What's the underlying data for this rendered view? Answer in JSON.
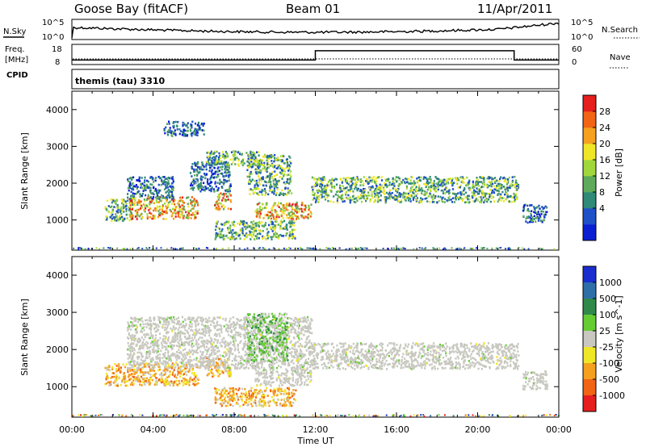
{
  "header": {
    "station": "Goose Bay (fitACF)",
    "beam": "Beam 01",
    "date": "11/Apr/2011"
  },
  "noise_panel": {
    "left_label": "N.Sky",
    "right_label": "N.Search",
    "left_ticks": [
      "10^5",
      "10^0"
    ],
    "right_ticks": [
      "10^5",
      "10^0"
    ]
  },
  "freq_panel": {
    "left_label_1": "Freq.",
    "left_label_2": "[MHz]",
    "left_ticks": [
      "18",
      "8"
    ],
    "right_label": "Nave",
    "right_ticks": [
      "60",
      "0"
    ],
    "cpid_label": "CPID"
  },
  "cpid_panel": {
    "text": "themis (tau) 3310"
  },
  "axes": {
    "ylabel": "Slant Range [km]",
    "yticks": [
      "1000",
      "2000",
      "3000",
      "4000"
    ],
    "xticks": [
      "00:00",
      "04:00",
      "08:00",
      "12:00",
      "16:00",
      "20:00",
      "00:00"
    ],
    "xlabel": "Time UT"
  },
  "power_colorbar": {
    "label": "Power [dB]",
    "ticks": [
      "4",
      "8",
      "12",
      "16",
      "20",
      "24",
      "28"
    ],
    "colors": [
      "#0a1ed2",
      "#1e50c8",
      "#2f8a78",
      "#5faa5a",
      "#a0d83c",
      "#f0e628",
      "#f5a01e",
      "#f06414",
      "#e61e1e"
    ]
  },
  "velocity_colorbar": {
    "label": "Velocity [m s^-1]",
    "ticks": [
      "1000",
      "500",
      "100",
      "25",
      "-25",
      "-100",
      "-500",
      "-1000"
    ],
    "colors": [
      "#1a2ecf",
      "#2f6fa8",
      "#2f8a4a",
      "#66cc33",
      "#c8c8c0",
      "#f0e628",
      "#f5a01e",
      "#f06414",
      "#e61e1e"
    ]
  },
  "chart_data": {
    "type": "heatmap",
    "x_range_hours": [
      0,
      24
    ],
    "y_range_km": [
      180,
      4500
    ],
    "frequency_mhz": [
      {
        "x_hours": 0,
        "value": 10
      },
      {
        "x_hours": 12,
        "value": 10
      },
      {
        "x_hours": 12,
        "value": 15
      },
      {
        "x_hours": 21.8,
        "value": 15
      },
      {
        "x_hours": 21.8,
        "value": 10
      },
      {
        "x_hours": 24,
        "value": 10
      }
    ],
    "power_regions": [
      {
        "t0": 1.6,
        "t1": 3.0,
        "r0": 1000,
        "r1": 1600,
        "level": "mid"
      },
      {
        "t0": 2.8,
        "t1": 6.2,
        "r0": 1050,
        "r1": 1650,
        "level": "high"
      },
      {
        "t0": 2.7,
        "t1": 5.0,
        "r0": 1600,
        "r1": 2200,
        "level": "low"
      },
      {
        "t0": 5.8,
        "t1": 7.8,
        "r0": 1800,
        "r1": 2600,
        "level": "low"
      },
      {
        "t0": 7.0,
        "t1": 7.8,
        "r0": 1300,
        "r1": 1750,
        "level": "high"
      },
      {
        "t0": 6.6,
        "t1": 9.2,
        "r0": 2500,
        "r1": 2900,
        "level": "mid"
      },
      {
        "t0": 9.0,
        "t1": 11.8,
        "r0": 1050,
        "r1": 1500,
        "level": "high"
      },
      {
        "t0": 8.6,
        "t1": 10.8,
        "r0": 1700,
        "r1": 2800,
        "level": "mid"
      },
      {
        "t0": 7.0,
        "t1": 11.0,
        "r0": 500,
        "r1": 1000,
        "level": "mid"
      },
      {
        "t0": 11.8,
        "t1": 22.0,
        "r0": 1500,
        "r1": 2200,
        "level": "mid"
      },
      {
        "t0": 22.2,
        "t1": 23.4,
        "r0": 950,
        "r1": 1450,
        "level": "low"
      },
      {
        "t0": 4.5,
        "t1": 6.5,
        "r0": 3300,
        "r1": 3700,
        "level": "low"
      }
    ],
    "velocity_regions": [
      {
        "t0": 1.6,
        "t1": 6.2,
        "r0": 1050,
        "r1": 1650,
        "level": "neg"
      },
      {
        "t0": 6.6,
        "t1": 7.8,
        "r0": 1300,
        "r1": 1800,
        "level": "neg"
      },
      {
        "t0": 2.7,
        "t1": 11.8,
        "r0": 1500,
        "r1": 2900,
        "level": "zero"
      },
      {
        "t0": 9.0,
        "t1": 11.8,
        "r0": 1050,
        "r1": 1500,
        "level": "zero"
      },
      {
        "t0": 8.6,
        "t1": 10.6,
        "r0": 1700,
        "r1": 3000,
        "level": "pos"
      },
      {
        "t0": 7.0,
        "t1": 11.0,
        "r0": 500,
        "r1": 1000,
        "level": "neg"
      },
      {
        "t0": 11.8,
        "t1": 22.0,
        "r0": 1500,
        "r1": 2200,
        "level": "zero"
      },
      {
        "t0": 22.2,
        "t1": 23.4,
        "r0": 950,
        "r1": 1450,
        "level": "zero"
      }
    ]
  }
}
